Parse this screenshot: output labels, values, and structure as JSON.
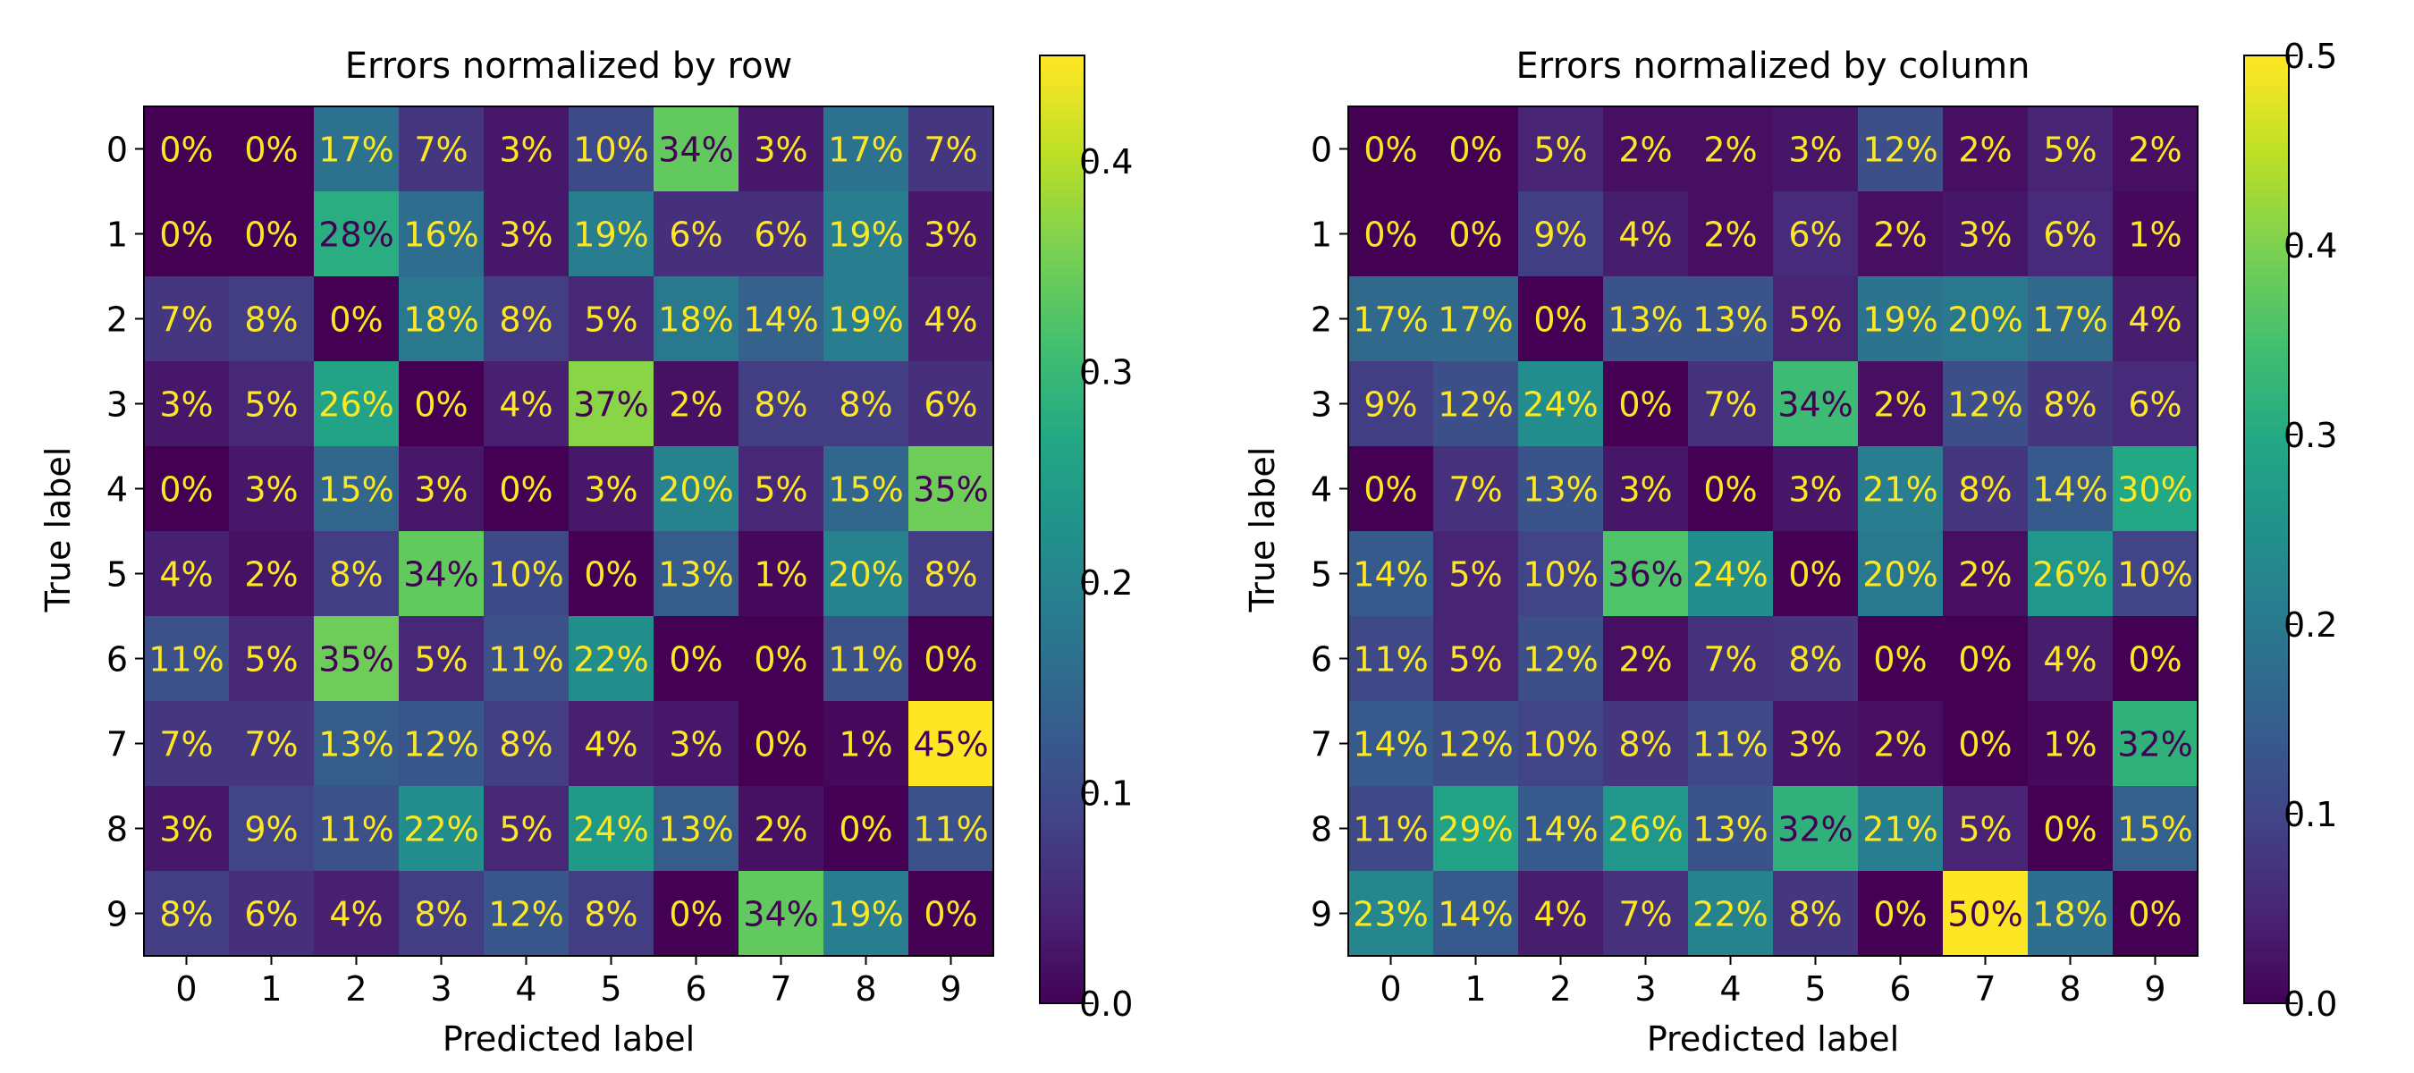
{
  "chart_data": [
    {
      "type": "heatmap",
      "title": "Errors normalized by row",
      "xlabel": "Predicted label",
      "ylabel": "True label",
      "x_categories": [
        "0",
        "1",
        "2",
        "3",
        "4",
        "5",
        "6",
        "7",
        "8",
        "9"
      ],
      "y_categories": [
        "0",
        "1",
        "2",
        "3",
        "4",
        "5",
        "6",
        "7",
        "8",
        "9"
      ],
      "cell_labels": [
        [
          "0%",
          "0%",
          "17%",
          "7%",
          "3%",
          "10%",
          "34%",
          "3%",
          "17%",
          "7%"
        ],
        [
          "0%",
          "0%",
          "28%",
          "16%",
          "3%",
          "19%",
          "6%",
          "6%",
          "19%",
          "3%"
        ],
        [
          "7%",
          "8%",
          "0%",
          "18%",
          "8%",
          "5%",
          "18%",
          "14%",
          "19%",
          "4%"
        ],
        [
          "3%",
          "5%",
          "26%",
          "0%",
          "4%",
          "37%",
          "2%",
          "8%",
          "8%",
          "6%"
        ],
        [
          "0%",
          "3%",
          "15%",
          "3%",
          "0%",
          "3%",
          "20%",
          "5%",
          "15%",
          "35%"
        ],
        [
          "4%",
          "2%",
          "8%",
          "34%",
          "10%",
          "0%",
          "13%",
          "1%",
          "20%",
          "8%"
        ],
        [
          "11%",
          "5%",
          "35%",
          "5%",
          "11%",
          "22%",
          "0%",
          "0%",
          "11%",
          "0%"
        ],
        [
          "7%",
          "7%",
          "13%",
          "12%",
          "8%",
          "4%",
          "3%",
          "0%",
          "1%",
          "45%"
        ],
        [
          "3%",
          "9%",
          "11%",
          "22%",
          "5%",
          "24%",
          "13%",
          "2%",
          "0%",
          "11%"
        ],
        [
          "8%",
          "6%",
          "4%",
          "8%",
          "12%",
          "8%",
          "0%",
          "34%",
          "19%",
          "0%"
        ]
      ],
      "colormap": "viridis",
      "colorbar": {
        "vmin": 0,
        "vmax": 0.45,
        "ticks": [
          "0.0",
          "0.1",
          "0.2",
          "0.3",
          "0.4"
        ]
      }
    },
    {
      "type": "heatmap",
      "title": "Errors normalized by column",
      "xlabel": "Predicted label",
      "ylabel": "True label",
      "x_categories": [
        "0",
        "1",
        "2",
        "3",
        "4",
        "5",
        "6",
        "7",
        "8",
        "9"
      ],
      "y_categories": [
        "0",
        "1",
        "2",
        "3",
        "4",
        "5",
        "6",
        "7",
        "8",
        "9"
      ],
      "cell_labels": [
        [
          "0%",
          "0%",
          "5%",
          "2%",
          "2%",
          "3%",
          "12%",
          "2%",
          "5%",
          "2%"
        ],
        [
          "0%",
          "0%",
          "9%",
          "4%",
          "2%",
          "6%",
          "2%",
          "3%",
          "6%",
          "1%"
        ],
        [
          "17%",
          "17%",
          "0%",
          "13%",
          "13%",
          "5%",
          "19%",
          "20%",
          "17%",
          "4%"
        ],
        [
          "9%",
          "12%",
          "24%",
          "0%",
          "7%",
          "34%",
          "2%",
          "12%",
          "8%",
          "6%"
        ],
        [
          "0%",
          "7%",
          "13%",
          "3%",
          "0%",
          "3%",
          "21%",
          "8%",
          "14%",
          "30%"
        ],
        [
          "14%",
          "5%",
          "10%",
          "36%",
          "24%",
          "0%",
          "20%",
          "2%",
          "26%",
          "10%"
        ],
        [
          "11%",
          "5%",
          "12%",
          "2%",
          "7%",
          "8%",
          "0%",
          "0%",
          "4%",
          "0%"
        ],
        [
          "14%",
          "12%",
          "10%",
          "8%",
          "11%",
          "3%",
          "2%",
          "0%",
          "1%",
          "32%"
        ],
        [
          "11%",
          "29%",
          "14%",
          "26%",
          "13%",
          "32%",
          "21%",
          "5%",
          "0%",
          "15%"
        ],
        [
          "23%",
          "14%",
          "4%",
          "7%",
          "22%",
          "8%",
          "0%",
          "50%",
          "18%",
          "0%"
        ]
      ],
      "colormap": "viridis",
      "colorbar": {
        "vmin": 0,
        "vmax": 0.5,
        "ticks": [
          "0.0",
          "0.1",
          "0.2",
          "0.3",
          "0.4",
          "0.5"
        ]
      }
    }
  ],
  "colors": {
    "text": "#000000",
    "label_light": "#fde725",
    "label_dark": "#440154"
  }
}
